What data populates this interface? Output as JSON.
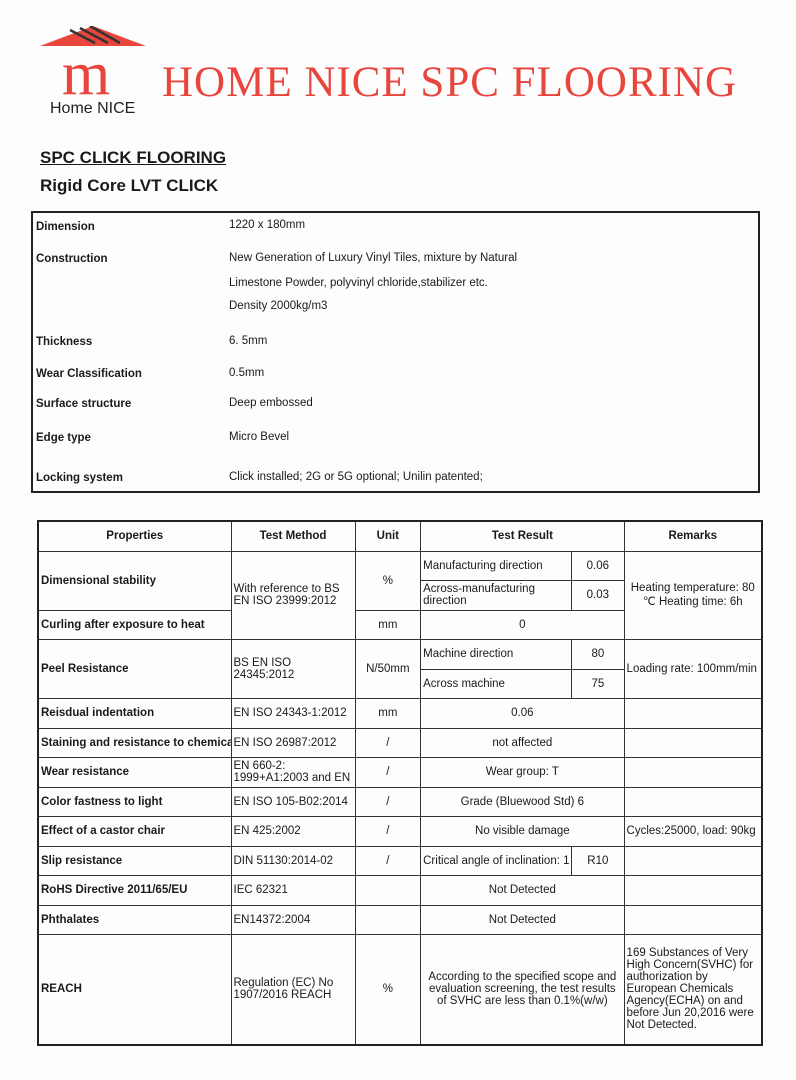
{
  "header": {
    "brand_title": "HOME NICE SPC FLOORING",
    "logo_text": "Home NICE",
    "logo_letter": "m",
    "brand_color": "#e8453c"
  },
  "titles": {
    "main": "SPC CLICK FLOORING",
    "sub": "Rigid Core LVT CLICK"
  },
  "spec": [
    {
      "label": "Dimension",
      "value": [
        "1220 x 180mm"
      ]
    },
    {
      "label": "Construction",
      "value": [
        "New Generation of Luxury Vinyl Tiles, mixture by Natural",
        "Limestone Powder, polyvinyl chloride,stabilizer etc.",
        "Density 2000kg/m3"
      ]
    },
    {
      "label": "Thickness",
      "value": [
        "6. 5mm"
      ]
    },
    {
      "label": "Wear Classification",
      "value": [
        "0.5mm"
      ]
    },
    {
      "label": "Surface structure",
      "value": [
        "Deep embossed"
      ]
    },
    {
      "label": "Edge type",
      "value": [
        "Micro Bevel"
      ]
    },
    {
      "label": "Locking system",
      "value": [
        "Click installed; 2G or 5G optional; Unilin patented;"
      ]
    }
  ],
  "table": {
    "headers": [
      "Properties",
      "Test Method",
      "Unit",
      "Test Result",
      "Remarks"
    ],
    "dim": {
      "prop": "Dimensional stability",
      "method": "With reference to BS EN ISO 23999:2012",
      "unit": "%",
      "r1": "Manufacturing direction",
      "v1": "0.06",
      "r2": "Across-manufacturing direction",
      "v2": "0.03",
      "remark": "Heating temperature: 80 ℃ Heating time: 6h"
    },
    "curl": {
      "prop": "Curling after exposure to heat",
      "unit": "mm",
      "result": "0"
    },
    "peel": {
      "prop": "Peel Resistance",
      "method": "BS EN ISO 24345:2012",
      "unit": "N/50mm",
      "r1": "Machine direction",
      "v1": "80",
      "r2": "Across machine",
      "v2": "75",
      "remark": "Loading rate: 100mm/min"
    },
    "rows": [
      {
        "prop": "Reisdual indentation",
        "method": "EN ISO 24343-1:2012",
        "unit": "mm",
        "result": "0.06",
        "remark": ""
      },
      {
        "prop": "Staining and resistance to chemicals",
        "method": "EN ISO 26987:2012",
        "unit": "/",
        "result": "not affected",
        "remark": ""
      },
      {
        "prop": "Wear resistance",
        "method": "EN 660-2: 1999+A1:2003 and EN",
        "unit": "/",
        "result": "Wear group: T",
        "remark": ""
      },
      {
        "prop": "Color fastness to light",
        "method": "EN ISO 105-B02:2014",
        "unit": "/",
        "result": "Grade (Bluewood Std)  6",
        "remark": ""
      },
      {
        "prop": "Effect of a castor chair",
        "method": "EN 425:2002",
        "unit": "/",
        "result": "No visible damage",
        "remark": "Cycles:25000, load: 90kg"
      }
    ],
    "slip": {
      "prop": "Slip resistance",
      "method": "DIN 51130:2014-02",
      "unit": "/",
      "result": "Critical angle of inclination: 1",
      "class": "R10",
      "remark": ""
    },
    "rows2": [
      {
        "prop": "RoHS Directive 2011/65/EU",
        "method": "IEC 62321",
        "unit": "",
        "result": "Not Detected",
        "remark": ""
      },
      {
        "prop": "Phthalates",
        "method": "EN14372:2004",
        "unit": "",
        "result": "Not Detected",
        "remark": ""
      },
      {
        "prop": "REACH",
        "method": "Regulation (EC) No 1907/2016 REACH",
        "unit": "%",
        "result": "According to the specified scope and evaluation screening, the test results of SVHC are less than 0.1%(w/w)",
        "remark": "169 Substances of Very High Concern(SVHC) for authorization by European Chemicals Agency(ECHA) on and before Jun 20,2016 were Not Detected."
      }
    ]
  }
}
